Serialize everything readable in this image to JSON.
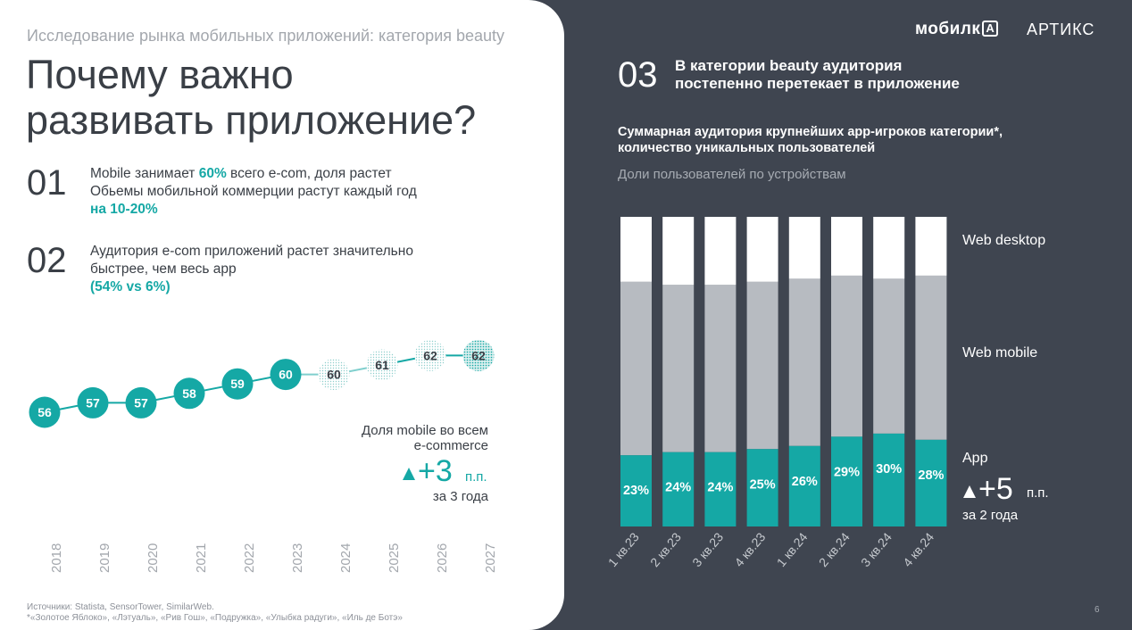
{
  "header": {
    "subtitle": "Исследование рынка мобильных приложений: категория beauty",
    "title_line1": "Почему важно",
    "title_line2": "развивать приложение?"
  },
  "points": [
    {
      "num": "01",
      "line1_pre": "Mobile занимает ",
      "line1_accent": "60%",
      "line1_post": " всего e-com, доля растет",
      "line2": "Обьемы мобильной коммерции растут каждый год",
      "line3_accent": "на 10-20%"
    },
    {
      "num": "02",
      "line1": "Аудитория e-com приложений растет значительно",
      "line2": "быстрее, чем весь app",
      "line3_accent": "(54% vs 6%)"
    }
  ],
  "left_callout": {
    "line1": "Доля mobile во всем",
    "line2": "e-commerce",
    "big": "+3",
    "unit": "п.п.",
    "period": "за 3 года"
  },
  "sources": {
    "line1": "Источники: Statista, SensorTower, SimilarWeb.",
    "line2": "*«Золотое Яблоко», «Лэтуаль», «Рив Гош», «Подружка», «Улыбка радуги», «Иль де Ботэ»"
  },
  "logos": {
    "mobilka": "мобилк",
    "mobilka_box": "А",
    "artix": "АРТИКС"
  },
  "right": {
    "num": "03",
    "title_line1": "В категории beauty аудитория",
    "title_line2": "постепенно перетекает в приложение",
    "chart_title_line1": "Суммарная аудитория крупнейших app-игроков категории*,",
    "chart_title_line2": "количество уникальных пользователей",
    "chart_subtitle": "Доли пользователей по устройствам",
    "callout_big": "+5",
    "callout_unit": "п.п.",
    "callout_period": "за 2 года"
  },
  "page_number": "6",
  "colors": {
    "teal": "#15a8a5",
    "dark": "#3f4550",
    "web_mobile": "#b7bbc1",
    "web_desktop": "#ffffff"
  },
  "chart_data": [
    {
      "type": "line",
      "x": [
        "2018",
        "2019",
        "2020",
        "2021",
        "2022",
        "2023",
        "2024",
        "2025",
        "2026",
        "2027"
      ],
      "values": [
        56,
        57,
        57,
        58,
        59,
        60,
        60,
        61,
        62,
        62
      ],
      "forecast_from_index": 6,
      "series_name": "Доля mobile во всем e-commerce"
    },
    {
      "type": "bar",
      "stacked": true,
      "normalized_percent": true,
      "categories": [
        "1 кв.23",
        "2 кв.23",
        "3 кв.23",
        "4 кв.23",
        "1 кв.24",
        "2 кв.24",
        "3 кв.24",
        "4 кв.24"
      ],
      "series": [
        {
          "name": "App",
          "values": [
            23,
            24,
            24,
            25,
            26,
            29,
            30,
            28
          ],
          "labels": [
            "23%",
            "24%",
            "24%",
            "25%",
            "26%",
            "29%",
            "30%",
            "28%"
          ]
        },
        {
          "name": "Web mobile",
          "values": [
            56,
            54,
            54,
            54,
            54,
            52,
            50,
            53
          ]
        },
        {
          "name": "Web desktop",
          "values": [
            21,
            22,
            22,
            21,
            20,
            19,
            20,
            19
          ]
        }
      ]
    }
  ]
}
